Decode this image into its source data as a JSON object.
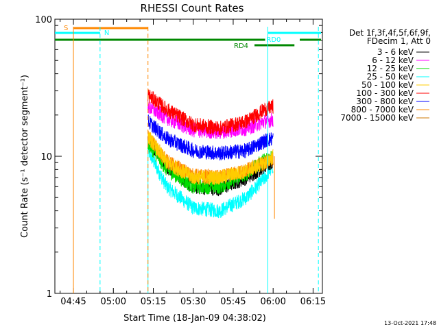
{
  "chart_data": {
    "type": "line",
    "title": "RHESSI Count Rates",
    "xlabel": "Start Time (18-Jan-09 04:38:02)",
    "ylabel": "Count Rate (s⁻¹ detector segment⁻¹)",
    "y_scale": "log",
    "ylim": [
      1,
      100
    ],
    "x_range_minutes": [
      "04:38:02",
      "06:18:30"
    ],
    "grid": false,
    "legend_placement": "top-right outside",
    "x_ticks": [
      "04:45",
      "05:00",
      "05:15",
      "05:30",
      "05:45",
      "06:00",
      "06:15"
    ],
    "y_ticks": [
      "1",
      "10",
      "100"
    ],
    "legend_header": [
      "Det 1f,3f,4f,5f,6f,9f,",
      "FDecim 1, Att 0"
    ],
    "series": [
      {
        "name": "3 - 6 keV",
        "color": "#000000",
        "x": [
          "05:13",
          "05:20",
          "05:30",
          "05:40",
          "05:50",
          "05:57",
          "06:00"
        ],
        "values": [
          13,
          8.5,
          6.0,
          5.8,
          7.0,
          8.5,
          9.0
        ]
      },
      {
        "name": "6 - 12 keV",
        "color": "#ff00ff",
        "x": [
          "05:13",
          "05:20",
          "05:30",
          "05:40",
          "05:50",
          "05:57",
          "06:00"
        ],
        "values": [
          23,
          19,
          15.5,
          15,
          16,
          18,
          18.5
        ]
      },
      {
        "name": "12 - 25 keV",
        "color": "#00dd00",
        "x": [
          "05:13",
          "05:20",
          "05:30",
          "05:40",
          "05:50",
          "05:57",
          "06:00"
        ],
        "values": [
          12.5,
          8.0,
          6.0,
          6.0,
          7.5,
          9.5,
          10
        ]
      },
      {
        "name": "25 - 50 keV",
        "color": "#00ffff",
        "x": [
          "05:13",
          "05:20",
          "05:30",
          "05:40",
          "05:50",
          "05:57",
          "06:00"
        ],
        "values": [
          11,
          6.0,
          4.2,
          4.0,
          5.0,
          7.0,
          8.5
        ]
      },
      {
        "name": "50 - 100 keV",
        "color": "#ffcc00",
        "x": [
          "05:13",
          "05:20",
          "05:30",
          "05:40",
          "05:50",
          "05:57",
          "06:00"
        ],
        "values": [
          14,
          9.0,
          7.0,
          7.0,
          7.8,
          9.0,
          10
        ]
      },
      {
        "name": "100 - 300 keV",
        "color": "#ff0000",
        "x": [
          "05:13",
          "05:20",
          "05:30",
          "05:40",
          "05:50",
          "05:57",
          "06:00"
        ],
        "values": [
          28,
          22,
          17,
          16,
          18,
          22,
          23
        ]
      },
      {
        "name": "300 - 800 keV",
        "color": "#0000ff",
        "x": [
          "05:13",
          "05:20",
          "05:30",
          "05:40",
          "05:50",
          "05:57",
          "06:00"
        ],
        "values": [
          18,
          13.5,
          11,
          10.5,
          11,
          13,
          13.5
        ]
      },
      {
        "name": "800 - 7000 keV",
        "color": "#ff8800",
        "x": [
          "05:13",
          "05:20",
          "05:30",
          "05:40",
          "05:50",
          "05:57",
          "06:00"
        ],
        "values": [
          14,
          9.2,
          7.2,
          7.0,
          7.9,
          9.0,
          9.5
        ]
      },
      {
        "name": "7000 - 15000 keV",
        "color": "#cc7700",
        "x": [],
        "values": []
      }
    ],
    "annotations": {
      "flags": [
        {
          "label": "S",
          "color": "#ff8800",
          "start": "04:45",
          "end": "05:13",
          "level": 1
        },
        {
          "label": "N",
          "color": "#00ffff",
          "start": "04:38",
          "end": "04:55",
          "level": 2
        },
        {
          "label": "RD0",
          "color": "#00ffff",
          "start": "05:58",
          "end": "06:18",
          "level": 2
        },
        {
          "label": "RD4",
          "color": "#008800",
          "start": "05:53",
          "end": "06:08",
          "level": 4
        }
      ],
      "green_line": {
        "color": "#008800",
        "segments": [
          [
            "04:38",
            "05:57"
          ],
          [
            "06:10",
            "06:18"
          ]
        ],
        "level": 3
      },
      "vlines": [
        {
          "time": "04:45",
          "color": "#ff8800",
          "style": "solid"
        },
        {
          "time": "04:55",
          "color": "#00ffff",
          "style": "dashed"
        },
        {
          "time": "05:13",
          "color": "#ff8800",
          "style": "dashed"
        },
        {
          "time": "05:58",
          "color": "#00ffff",
          "style": "solid"
        },
        {
          "time": "06:17",
          "color": "#00ffff",
          "style": "dashed"
        }
      ]
    }
  },
  "footer": {
    "timestamp": "13-Oct-2021 17:48"
  }
}
